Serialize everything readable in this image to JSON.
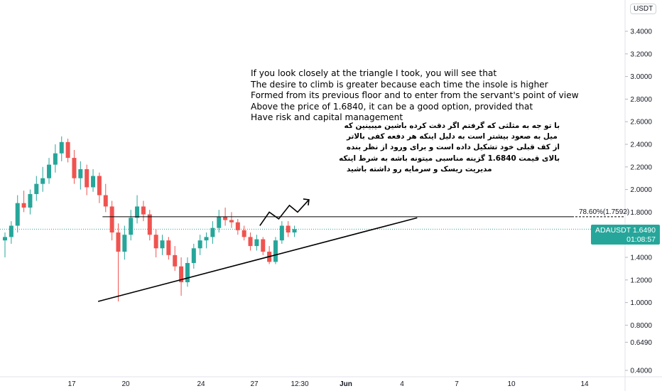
{
  "chart_data": {
    "type": "candlestick",
    "symbol": "ADAUSDT",
    "currency": "USDT",
    "last_price": "1.6490",
    "countdown": "01:08:57",
    "y_axis": {
      "ticks": [
        "3.4000",
        "3.2000",
        "3.0000",
        "2.8000",
        "2.6000",
        "2.4000",
        "2.2000",
        "2.0000",
        "1.8000",
        "1.6000",
        "1.4000",
        "1.2000",
        "1.0000",
        "0.8000",
        "0.6490",
        "0.4000"
      ],
      "range": [
        0.38,
        3.57
      ]
    },
    "x_axis": {
      "ticks": [
        "17",
        "20",
        "24",
        "27",
        "12:30",
        "Jun",
        "4",
        "7",
        "10",
        "14"
      ]
    },
    "fib_level": {
      "label": "78.60%(1.7592)",
      "value": 1.7592
    },
    "colors": {
      "up": "#26a69a",
      "down": "#ef5350",
      "line": "#000000",
      "tag": "#26a69a"
    },
    "candles": [
      {
        "x": 0,
        "o": 1.55,
        "h": 1.62,
        "l": 1.4,
        "c": 1.58
      },
      {
        "x": 1,
        "o": 1.58,
        "h": 1.72,
        "l": 1.52,
        "c": 1.68
      },
      {
        "x": 2,
        "o": 1.68,
        "h": 1.95,
        "l": 1.62,
        "c": 1.88
      },
      {
        "x": 3,
        "o": 1.88,
        "h": 1.99,
        "l": 1.8,
        "c": 1.84
      },
      {
        "x": 4,
        "o": 1.84,
        "h": 2.0,
        "l": 1.78,
        "c": 1.96
      },
      {
        "x": 5,
        "o": 1.96,
        "h": 2.12,
        "l": 1.9,
        "c": 2.05
      },
      {
        "x": 6,
        "o": 2.05,
        "h": 2.2,
        "l": 1.98,
        "c": 2.1
      },
      {
        "x": 7,
        "o": 2.1,
        "h": 2.28,
        "l": 2.05,
        "c": 2.22
      },
      {
        "x": 8,
        "o": 2.22,
        "h": 2.4,
        "l": 2.15,
        "c": 2.32
      },
      {
        "x": 9,
        "o": 2.32,
        "h": 2.47,
        "l": 2.25,
        "c": 2.42
      },
      {
        "x": 10,
        "o": 2.42,
        "h": 2.45,
        "l": 2.24,
        "c": 2.28
      },
      {
        "x": 11,
        "o": 2.28,
        "h": 2.35,
        "l": 2.05,
        "c": 2.1
      },
      {
        "x": 12,
        "o": 2.1,
        "h": 2.25,
        "l": 2.0,
        "c": 2.18
      },
      {
        "x": 13,
        "o": 2.18,
        "h": 2.22,
        "l": 1.95,
        "c": 2.02
      },
      {
        "x": 14,
        "o": 2.02,
        "h": 2.18,
        "l": 1.98,
        "c": 2.12
      },
      {
        "x": 15,
        "o": 2.12,
        "h": 2.15,
        "l": 1.88,
        "c": 1.95
      },
      {
        "x": 16,
        "o": 1.95,
        "h": 2.05,
        "l": 1.8,
        "c": 1.85
      },
      {
        "x": 17,
        "o": 1.85,
        "h": 1.9,
        "l": 1.55,
        "c": 1.62
      },
      {
        "x": 18,
        "o": 1.62,
        "h": 1.7,
        "l": 1.01,
        "c": 1.45
      },
      {
        "x": 19,
        "o": 1.45,
        "h": 1.68,
        "l": 1.38,
        "c": 1.6
      },
      {
        "x": 20,
        "o": 1.6,
        "h": 1.82,
        "l": 1.55,
        "c": 1.75
      },
      {
        "x": 21,
        "o": 1.75,
        "h": 1.95,
        "l": 1.7,
        "c": 1.85
      },
      {
        "x": 22,
        "o": 1.85,
        "h": 1.9,
        "l": 1.72,
        "c": 1.78
      },
      {
        "x": 23,
        "o": 1.78,
        "h": 1.82,
        "l": 1.55,
        "c": 1.6
      },
      {
        "x": 24,
        "o": 1.6,
        "h": 1.65,
        "l": 1.4,
        "c": 1.48
      },
      {
        "x": 25,
        "o": 1.48,
        "h": 1.6,
        "l": 1.42,
        "c": 1.55
      },
      {
        "x": 26,
        "o": 1.55,
        "h": 1.58,
        "l": 1.38,
        "c": 1.42
      },
      {
        "x": 27,
        "o": 1.42,
        "h": 1.5,
        "l": 1.28,
        "c": 1.32
      },
      {
        "x": 28,
        "o": 1.32,
        "h": 1.4,
        "l": 1.06,
        "c": 1.18
      },
      {
        "x": 29,
        "o": 1.18,
        "h": 1.4,
        "l": 1.14,
        "c": 1.35
      },
      {
        "x": 30,
        "o": 1.35,
        "h": 1.52,
        "l": 1.3,
        "c": 1.48
      },
      {
        "x": 31,
        "o": 1.48,
        "h": 1.6,
        "l": 1.42,
        "c": 1.55
      },
      {
        "x": 32,
        "o": 1.55,
        "h": 1.62,
        "l": 1.48,
        "c": 1.58
      },
      {
        "x": 33,
        "o": 1.58,
        "h": 1.72,
        "l": 1.52,
        "c": 1.66
      },
      {
        "x": 34,
        "o": 1.66,
        "h": 1.82,
        "l": 1.62,
        "c": 1.76
      },
      {
        "x": 35,
        "o": 1.76,
        "h": 1.84,
        "l": 1.68,
        "c": 1.73
      },
      {
        "x": 36,
        "o": 1.73,
        "h": 1.8,
        "l": 1.66,
        "c": 1.71
      },
      {
        "x": 37,
        "o": 1.71,
        "h": 1.74,
        "l": 1.6,
        "c": 1.64
      },
      {
        "x": 38,
        "o": 1.64,
        "h": 1.68,
        "l": 1.55,
        "c": 1.58
      },
      {
        "x": 39,
        "o": 1.58,
        "h": 1.62,
        "l": 1.46,
        "c": 1.5
      },
      {
        "x": 40,
        "o": 1.5,
        "h": 1.6,
        "l": 1.46,
        "c": 1.56
      },
      {
        "x": 41,
        "o": 1.56,
        "h": 1.58,
        "l": 1.42,
        "c": 1.45
      },
      {
        "x": 42,
        "o": 1.45,
        "h": 1.5,
        "l": 1.34,
        "c": 1.36
      },
      {
        "x": 43,
        "o": 1.36,
        "h": 1.58,
        "l": 1.34,
        "c": 1.55
      },
      {
        "x": 44,
        "o": 1.55,
        "h": 1.72,
        "l": 1.52,
        "c": 1.68
      },
      {
        "x": 45,
        "o": 1.68,
        "h": 1.72,
        "l": 1.58,
        "c": 1.62
      },
      {
        "x": 46,
        "o": 1.62,
        "h": 1.68,
        "l": 1.58,
        "c": 1.65
      }
    ],
    "support_line": {
      "from": {
        "x": 14.8,
        "y": 1.01
      },
      "to": {
        "x": 65.5,
        "y": 1.75
      }
    },
    "resistance_line": {
      "from": {
        "x": 15.5,
        "y": 1.7592
      },
      "to": {
        "x": 78,
        "y": 1.7592
      }
    },
    "zigzag": [
      {
        "x": 40.5,
        "y": 1.68
      },
      {
        "x": 42,
        "y": 1.8
      },
      {
        "x": 43.5,
        "y": 1.74
      },
      {
        "x": 45.2,
        "y": 1.86
      },
      {
        "x": 46.5,
        "y": 1.8
      },
      {
        "x": 48.3,
        "y": 1.91
      }
    ]
  },
  "notes": {
    "english": [
      "If you look closely at the triangle I took, you will see that",
      "The desire to climb is greater because each time the insole is higher",
      "Formed from its previous floor and to enter from the servant's point of view",
      "Above the price of 1.6840, it can be a good option, provided that",
      "Have risk and capital management"
    ],
    "persian": [
      "با تو جه به مثلثی که گرفتم اگر دقت کرده باشین میبینین که",
      "میل به صعود بیشتر است به دلیل اینکه هر دفعه کفی بالاتر",
      "از کف قبلی خود تشکیل داده است و برای ورود از نظر بنده",
      "بالای قیمت 1.6840 گزینه مناسبی میتونه باشه به شرط اینکه",
      "مدیریت ریسک و سرمایه رو داشته باشید"
    ]
  }
}
